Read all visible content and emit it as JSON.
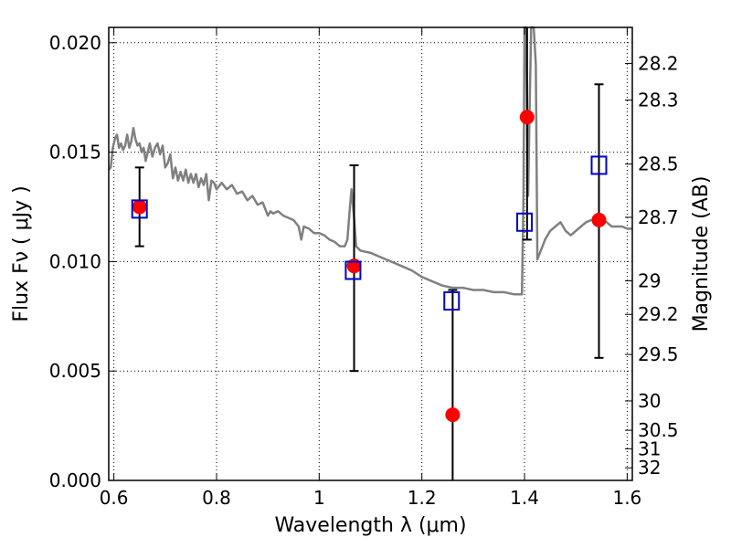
{
  "chart_data": {
    "type": "scatter",
    "title": "",
    "xlabel": "Wavelength  λ (μm)",
    "ylabel": "Flux  Fν  ( μJy )",
    "y2label": "Magnitude (AB)",
    "xlim": [
      0.59,
      1.61
    ],
    "ylim": [
      0.0,
      0.0207
    ],
    "grid": true,
    "x_ticks": [
      {
        "value": 0.6,
        "label": "0.6"
      },
      {
        "value": 0.8,
        "label": "0.8"
      },
      {
        "value": 1.0,
        "label": "1"
      },
      {
        "value": 1.2,
        "label": "1.2"
      },
      {
        "value": 1.4,
        "label": "1.4"
      },
      {
        "value": 1.6,
        "label": "1.6"
      }
    ],
    "y_ticks": [
      {
        "value": 0.0,
        "label": "0.000"
      },
      {
        "value": 0.005,
        "label": "0.005"
      },
      {
        "value": 0.01,
        "label": "0.010"
      },
      {
        "value": 0.015,
        "label": "0.015"
      },
      {
        "value": 0.02,
        "label": "0.020"
      }
    ],
    "y2_ticks": [
      {
        "value": 28.2,
        "label": "28.2"
      },
      {
        "value": 28.3,
        "label": "28.3"
      },
      {
        "value": 28.5,
        "label": "28.5"
      },
      {
        "value": 28.7,
        "label": "28.7"
      },
      {
        "value": 29.0,
        "label": "29"
      },
      {
        "value": 29.2,
        "label": "29.2"
      },
      {
        "value": 29.5,
        "label": "29.5"
      },
      {
        "value": 30.0,
        "label": "30"
      },
      {
        "value": 30.5,
        "label": "30.5"
      },
      {
        "value": 31.0,
        "label": "31"
      },
      {
        "value": 32.0,
        "label": "32"
      }
    ],
    "series": [
      {
        "kind": "line",
        "color": "#808080",
        "points": [
          [
            0.59,
            0.0142
          ],
          [
            0.594,
            0.0143
          ],
          [
            0.598,
            0.0152
          ],
          [
            0.602,
            0.0156
          ],
          [
            0.606,
            0.0158
          ],
          [
            0.61,
            0.0152
          ],
          [
            0.614,
            0.0154
          ],
          [
            0.618,
            0.0151
          ],
          [
            0.622,
            0.0153
          ],
          [
            0.626,
            0.0158
          ],
          [
            0.63,
            0.0152
          ],
          [
            0.634,
            0.0155
          ],
          [
            0.638,
            0.0161
          ],
          [
            0.642,
            0.0156
          ],
          [
            0.646,
            0.0153
          ],
          [
            0.65,
            0.0154
          ],
          [
            0.654,
            0.015
          ],
          [
            0.658,
            0.0152
          ],
          [
            0.662,
            0.0146
          ],
          [
            0.666,
            0.015
          ],
          [
            0.67,
            0.0154
          ],
          [
            0.675,
            0.0148
          ],
          [
            0.68,
            0.0152
          ],
          [
            0.685,
            0.0154
          ],
          [
            0.69,
            0.0149
          ],
          [
            0.695,
            0.0153
          ],
          [
            0.7,
            0.0143
          ],
          [
            0.705,
            0.0145
          ],
          [
            0.71,
            0.0149
          ],
          [
            0.715,
            0.0138
          ],
          [
            0.72,
            0.0143
          ],
          [
            0.725,
            0.0137
          ],
          [
            0.73,
            0.0141
          ],
          [
            0.735,
            0.0137
          ],
          [
            0.74,
            0.0142
          ],
          [
            0.745,
            0.0136
          ],
          [
            0.75,
            0.014
          ],
          [
            0.755,
            0.0136
          ],
          [
            0.76,
            0.014
          ],
          [
            0.765,
            0.0134
          ],
          [
            0.77,
            0.0138
          ],
          [
            0.775,
            0.0135
          ],
          [
            0.78,
            0.014
          ],
          [
            0.785,
            0.0128
          ],
          [
            0.79,
            0.0137
          ],
          [
            0.795,
            0.0136
          ],
          [
            0.8,
            0.0133
          ],
          [
            0.81,
            0.0136
          ],
          [
            0.82,
            0.0133
          ],
          [
            0.83,
            0.0135
          ],
          [
            0.84,
            0.0131
          ],
          [
            0.85,
            0.0132
          ],
          [
            0.86,
            0.0128
          ],
          [
            0.87,
            0.013
          ],
          [
            0.88,
            0.0126
          ],
          [
            0.89,
            0.0127
          ],
          [
            0.9,
            0.0121
          ],
          [
            0.905,
            0.0123
          ],
          [
            0.91,
            0.0122
          ],
          [
            0.92,
            0.0123
          ],
          [
            0.93,
            0.0121
          ],
          [
            0.94,
            0.012
          ],
          [
            0.95,
            0.0119
          ],
          [
            0.96,
            0.0116
          ],
          [
            0.965,
            0.011
          ],
          [
            0.97,
            0.0116
          ],
          [
            0.98,
            0.0115
          ],
          [
            0.99,
            0.0113
          ],
          [
            1.0,
            0.0113
          ],
          [
            1.01,
            0.0112
          ],
          [
            1.02,
            0.011
          ],
          [
            1.03,
            0.0109
          ],
          [
            1.04,
            0.0107
          ],
          [
            1.05,
            0.0107
          ],
          [
            1.055,
            0.011
          ],
          [
            1.06,
            0.0125
          ],
          [
            1.063,
            0.0133
          ],
          [
            1.068,
            0.012
          ],
          [
            1.072,
            0.0107
          ],
          [
            1.08,
            0.0105
          ],
          [
            1.1,
            0.0104
          ],
          [
            1.12,
            0.0102
          ],
          [
            1.14,
            0.01
          ],
          [
            1.16,
            0.0098
          ],
          [
            1.18,
            0.0096
          ],
          [
            1.2,
            0.0093
          ],
          [
            1.22,
            0.0091
          ],
          [
            1.24,
            0.0089
          ],
          [
            1.26,
            0.0088
          ],
          [
            1.28,
            0.0088
          ],
          [
            1.3,
            0.0087
          ],
          [
            1.32,
            0.0087
          ],
          [
            1.34,
            0.0086
          ],
          [
            1.36,
            0.0086
          ],
          [
            1.38,
            0.0085
          ],
          [
            1.395,
            0.0085
          ],
          [
            1.398,
            0.013
          ],
          [
            1.4,
            0.021
          ],
          [
            1.403,
            0.021
          ],
          [
            1.405,
            0.017
          ],
          [
            1.407,
            0.013
          ],
          [
            1.41,
            0.017
          ],
          [
            1.413,
            0.021
          ],
          [
            1.418,
            0.021
          ],
          [
            1.422,
            0.019
          ],
          [
            1.425,
            0.0101
          ],
          [
            1.43,
            0.0104
          ],
          [
            1.44,
            0.011
          ],
          [
            1.45,
            0.0114
          ],
          [
            1.46,
            0.0116
          ],
          [
            1.47,
            0.0118
          ],
          [
            1.48,
            0.0114
          ],
          [
            1.49,
            0.0112
          ],
          [
            1.5,
            0.0114
          ],
          [
            1.51,
            0.0116
          ],
          [
            1.52,
            0.0118
          ],
          [
            1.53,
            0.0119
          ],
          [
            1.54,
            0.0119
          ],
          [
            1.55,
            0.0118
          ],
          [
            1.56,
            0.0118
          ],
          [
            1.57,
            0.0116
          ],
          [
            1.58,
            0.0116
          ],
          [
            1.59,
            0.0116
          ],
          [
            1.6,
            0.0115
          ],
          [
            1.61,
            0.0115
          ]
        ]
      },
      {
        "kind": "points",
        "marker": "circle",
        "color": "#ff0000",
        "points": [
          {
            "x": 0.65,
            "y": 0.0125,
            "err_low": 0.0107,
            "err_high": 0.0143
          },
          {
            "x": 1.068,
            "y": 0.0098,
            "err_low": 0.005,
            "err_high": 0.0144
          },
          {
            "x": 1.26,
            "y": 0.003,
            "err_low": 0.0,
            "err_high": 0.0087
          },
          {
            "x": 1.405,
            "y": 0.0166,
            "err_low": 0.011,
            "err_high": 0.0207
          },
          {
            "x": 1.545,
            "y": 0.0119,
            "err_low": 0.0056,
            "err_high": 0.0181
          }
        ]
      },
      {
        "kind": "points",
        "marker": "square-open",
        "color": "#0000cc",
        "points": [
          {
            "x": 0.65,
            "y": 0.0124
          },
          {
            "x": 1.066,
            "y": 0.0096
          },
          {
            "x": 1.258,
            "y": 0.0082
          },
          {
            "x": 1.4,
            "y": 0.0118
          },
          {
            "x": 1.545,
            "y": 0.0144
          }
        ]
      }
    ]
  }
}
